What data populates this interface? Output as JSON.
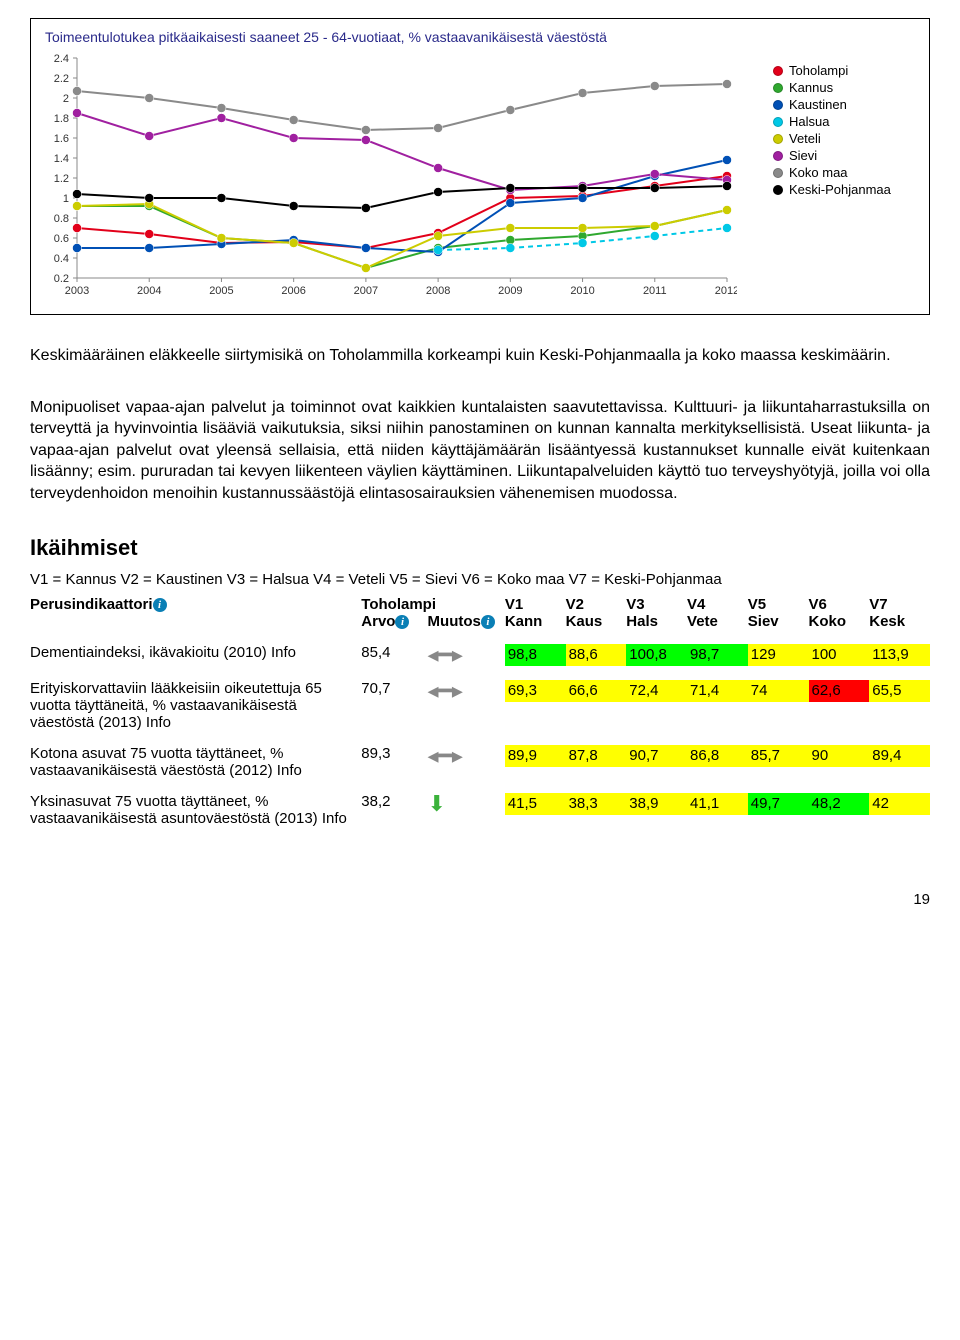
{
  "chart": {
    "title": "Toimeentulotukea pitkäaikaisesti saaneet 25 - 64-vuotiaat, % vastaavanikäisestä väestöstä",
    "title_color": "#2a2a8a",
    "background": "#ffffff",
    "x_years": [
      "2003",
      "2004",
      "2005",
      "2006",
      "2007",
      "2008",
      "2009",
      "2010",
      "2011",
      "2012"
    ],
    "ylim": [
      0.2,
      2.4
    ],
    "ytick_step": 0.2,
    "series": [
      {
        "name": "Toholampi",
        "color": "#e2001a",
        "values": [
          0.7,
          0.64,
          0.55,
          0.56,
          0.5,
          0.65,
          1.0,
          1.02,
          1.12,
          1.22
        ]
      },
      {
        "name": "Kannus",
        "color": "#2fa82f",
        "values": [
          0.92,
          0.92,
          0.6,
          0.55,
          0.3,
          0.5,
          0.58,
          0.62,
          0.72,
          0.88
        ]
      },
      {
        "name": "Kaustinen",
        "color": "#0050b5",
        "values": [
          0.5,
          0.5,
          0.54,
          0.58,
          0.5,
          0.46,
          0.95,
          1.0,
          1.22,
          1.38
        ]
      },
      {
        "name": "Halsua",
        "color": "#00c8e6",
        "values": [
          null,
          null,
          null,
          null,
          null,
          0.48,
          0.5,
          0.55,
          0.62,
          0.7
        ],
        "dashed": true
      },
      {
        "name": "Veteli",
        "color": "#cccc00",
        "values": [
          0.92,
          0.94,
          0.6,
          0.55,
          0.3,
          0.62,
          0.7,
          0.7,
          0.72,
          0.88
        ]
      },
      {
        "name": "Sievi",
        "color": "#a020a0",
        "values": [
          1.85,
          1.62,
          1.8,
          1.6,
          1.58,
          1.3,
          1.08,
          1.12,
          1.24,
          1.18
        ]
      },
      {
        "name": "Koko maa",
        "color": "#8a8a8a",
        "values": [
          2.07,
          2.0,
          1.9,
          1.78,
          1.68,
          1.7,
          1.88,
          2.05,
          2.12,
          2.14
        ]
      },
      {
        "name": "Keski-Pohjanmaa",
        "color": "#000000",
        "values": [
          1.04,
          1.0,
          1.0,
          0.92,
          0.9,
          1.06,
          1.1,
          1.1,
          1.1,
          1.12
        ]
      }
    ],
    "axis_color": "#888888",
    "label_fontsize": 11
  },
  "para1": "Keskimääräinen eläkkeelle siirtymisikä on Toholammilla korkeampi kuin Keski-Pohjanmaalla ja koko maassa keskimäärin.",
  "para2": "Monipuoliset vapaa-ajan palvelut ja toiminnot ovat kaikkien kuntalaisten saavutettavissa. Kulttuuri- ja liikuntaharrastuksilla on terveyttä ja hyvinvointia lisääviä vaikutuksia, siksi niihin panostaminen on kunnan kannalta merkityksellisistä. Useat liikunta- ja vapaa-ajan palvelut ovat yleensä sellaisia, että niiden käyttäjämäärän lisääntyessä kustannukset kunnalle eivät kuitenkaan lisäänny; esim. pururadan tai kevyen liikenteen väylien käyttäminen. Liikuntapalveluiden käyttö tuo terveyshyötyjä, joilla voi olla terveydenhoidon menoihin kustannussäästöjä elintasosairauksien vähenemisen muodossa.",
  "section_heading": "Ikäihmiset",
  "v_legend": "V1 = Kannus V2 = Kaustinen V3 = Halsua V4 = Veteli V5 = Sievi V6 = Koko maa V7 = Keski-Pohjanmaa",
  "table": {
    "hdr_perus": "Perusindikaattori",
    "hdr_toho": "Toholampi",
    "hdr_cols": [
      "V1",
      "V2",
      "V3",
      "V4",
      "V5",
      "V6",
      "V7"
    ],
    "hdr_sub": [
      "Kann",
      "Kaus",
      "Hals",
      "Vete",
      "Siev",
      "Koko",
      "Kesk"
    ],
    "hdr_arvo": "Arvo",
    "hdr_muutos": "Muutos",
    "colors": {
      "green": "#00ff00",
      "yellow": "#ffff00",
      "red": "#ff0000",
      "none": "#ffffff"
    },
    "rows": [
      {
        "label": "Dementiaindeksi, ikävakioitu (2010) Info",
        "arvo": "85,4",
        "arrow": "flat",
        "cells": [
          {
            "v": "98,8",
            "c": "green"
          },
          {
            "v": "88,6",
            "c": "yellow"
          },
          {
            "v": "100,8",
            "c": "green"
          },
          {
            "v": "98,7",
            "c": "green"
          },
          {
            "v": "129",
            "c": "yellow"
          },
          {
            "v": "100",
            "c": "yellow"
          },
          {
            "v": "113,9",
            "c": "yellow"
          }
        ]
      },
      {
        "label": "Erityiskorvattaviin lääkkeisiin oikeutettuja 65 vuotta täyttäneitä, % vastaavanikäisestä väestöstä (2013) Info",
        "arvo": "70,7",
        "arrow": "flat",
        "cells": [
          {
            "v": "69,3",
            "c": "yellow"
          },
          {
            "v": "66,6",
            "c": "yellow"
          },
          {
            "v": "72,4",
            "c": "yellow"
          },
          {
            "v": "71,4",
            "c": "yellow"
          },
          {
            "v": "74",
            "c": "yellow"
          },
          {
            "v": "62,6",
            "c": "red"
          },
          {
            "v": "65,5",
            "c": "yellow"
          }
        ]
      },
      {
        "label": "Kotona asuvat 75 vuotta täyttäneet, % vastaavanikäisestä väestöstä (2012) Info",
        "arvo": "89,3",
        "arrow": "flat",
        "cells": [
          {
            "v": "89,9",
            "c": "yellow"
          },
          {
            "v": "87,8",
            "c": "yellow"
          },
          {
            "v": "90,7",
            "c": "yellow"
          },
          {
            "v": "86,8",
            "c": "yellow"
          },
          {
            "v": "85,7",
            "c": "yellow"
          },
          {
            "v": "90",
            "c": "yellow"
          },
          {
            "v": "89,4",
            "c": "yellow"
          }
        ]
      },
      {
        "label": "Yksinasuvat 75 vuotta täyttäneet, % vastaavanikäisestä asuntoväestöstä (2013) Info",
        "arvo": "38,2",
        "arrow": "down-green",
        "cells": [
          {
            "v": "41,5",
            "c": "yellow"
          },
          {
            "v": "38,3",
            "c": "yellow"
          },
          {
            "v": "38,9",
            "c": "yellow"
          },
          {
            "v": "41,1",
            "c": "yellow"
          },
          {
            "v": "49,7",
            "c": "green"
          },
          {
            "v": "48,2",
            "c": "green"
          },
          {
            "v": "42",
            "c": "yellow"
          }
        ]
      }
    ]
  },
  "pagenum": "19"
}
